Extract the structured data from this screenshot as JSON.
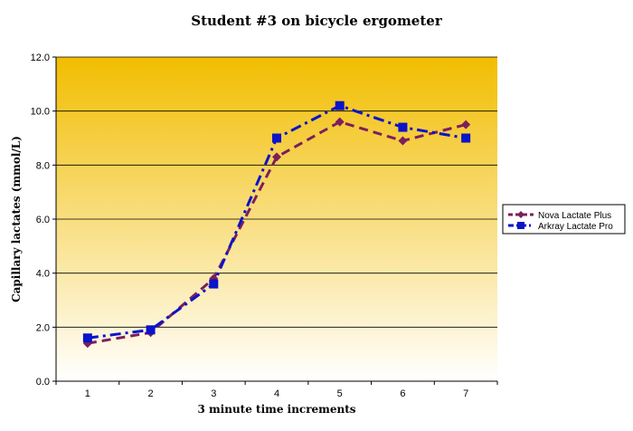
{
  "chart_data": {
    "type": "line",
    "title": "Student #3 on bicycle ergometer",
    "xlabel": "3 minute time increments",
    "ylabel": "Capillary lactates (mmol/L)",
    "categories": [
      "1",
      "2",
      "3",
      "4",
      "5",
      "6",
      "7"
    ],
    "ylim": [
      0,
      12
    ],
    "yticks": [
      "0.0",
      "2.0",
      "4.0",
      "6.0",
      "8.0",
      "10.0",
      "12.0"
    ],
    "grid": true,
    "legend_position": "right",
    "series": [
      {
        "name": "Nova Lactate Plus",
        "values": [
          1.4,
          1.8,
          3.8,
          8.3,
          9.6,
          8.9,
          9.5
        ],
        "color": "#7b1f5e",
        "marker": "diamond",
        "dash": "dash"
      },
      {
        "name": "Arkray Lactate Pro",
        "values": [
          1.6,
          1.9,
          3.6,
          9.0,
          10.2,
          9.4,
          9.0
        ],
        "color": "#0a14c8",
        "marker": "square",
        "dash": "dashdot"
      }
    ],
    "background_gradient": [
      "#f2bd00",
      "#ffffff"
    ]
  }
}
